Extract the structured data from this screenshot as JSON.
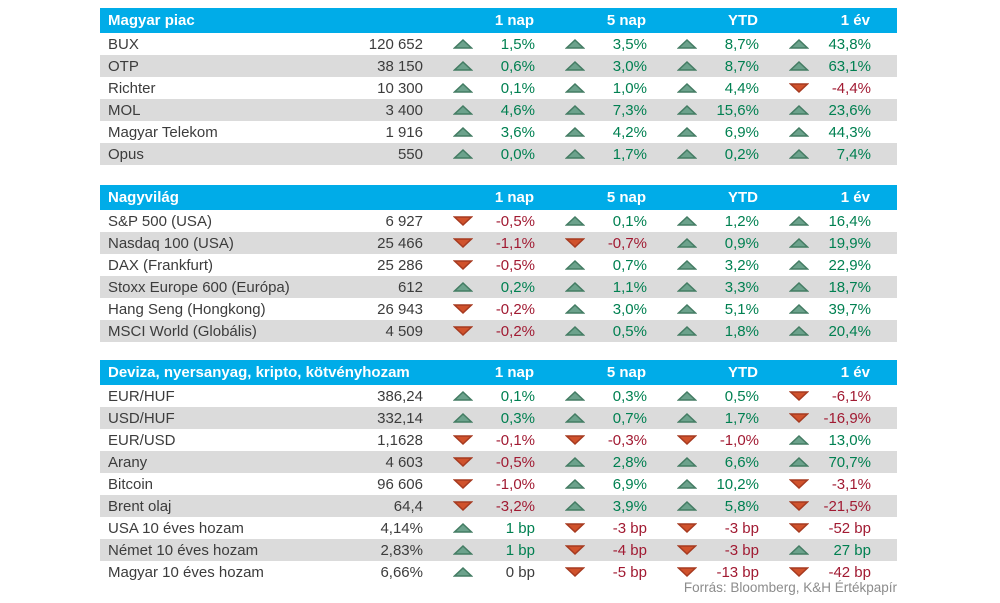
{
  "columns": [
    "1 nap",
    "5 nap",
    "YTD",
    "1 év"
  ],
  "footer": {
    "source": "Forrás: Bloomberg, K&H Értékpapír"
  },
  "colors": {
    "header_bg": "#00ACE8",
    "header_text": "#FFFFFF",
    "row_stripe": "#DBDBDB",
    "text_primary": "#3C3C3C",
    "positive_text": "#008051",
    "negative_text": "#A11A32",
    "up_triangle_fill": "#6CA28C",
    "up_triangle_border": "#437C63",
    "down_triangle_fill": "#D0522C",
    "down_triangle_border": "#A63A20",
    "source_text": "#8C8C8C"
  },
  "tables": [
    {
      "title": "Magyar piac",
      "rows": [
        {
          "name": "BUX",
          "value": "120 652",
          "changes": [
            {
              "dir": "up",
              "text": "1,5%",
              "tone": "pos"
            },
            {
              "dir": "up",
              "text": "3,5%",
              "tone": "pos"
            },
            {
              "dir": "up",
              "text": "8,7%",
              "tone": "pos"
            },
            {
              "dir": "up",
              "text": "43,8%",
              "tone": "pos"
            }
          ]
        },
        {
          "name": "OTP",
          "value": "38 150",
          "changes": [
            {
              "dir": "up",
              "text": "0,6%",
              "tone": "pos"
            },
            {
              "dir": "up",
              "text": "3,0%",
              "tone": "pos"
            },
            {
              "dir": "up",
              "text": "8,7%",
              "tone": "pos"
            },
            {
              "dir": "up",
              "text": "63,1%",
              "tone": "pos"
            }
          ]
        },
        {
          "name": "Richter",
          "value": "10 300",
          "changes": [
            {
              "dir": "up",
              "text": "0,1%",
              "tone": "pos"
            },
            {
              "dir": "up",
              "text": "1,0%",
              "tone": "pos"
            },
            {
              "dir": "up",
              "text": "4,4%",
              "tone": "pos"
            },
            {
              "dir": "down",
              "text": "-4,4%",
              "tone": "neg"
            }
          ]
        },
        {
          "name": "MOL",
          "value": "3 400",
          "changes": [
            {
              "dir": "up",
              "text": "4,6%",
              "tone": "pos"
            },
            {
              "dir": "up",
              "text": "7,3%",
              "tone": "pos"
            },
            {
              "dir": "up",
              "text": "15,6%",
              "tone": "pos"
            },
            {
              "dir": "up",
              "text": "23,6%",
              "tone": "pos"
            }
          ]
        },
        {
          "name": "Magyar Telekom",
          "value": "1 916",
          "changes": [
            {
              "dir": "up",
              "text": "3,6%",
              "tone": "pos"
            },
            {
              "dir": "up",
              "text": "4,2%",
              "tone": "pos"
            },
            {
              "dir": "up",
              "text": "6,9%",
              "tone": "pos"
            },
            {
              "dir": "up",
              "text": "44,3%",
              "tone": "pos"
            }
          ]
        },
        {
          "name": "Opus",
          "value": "550",
          "changes": [
            {
              "dir": "up",
              "text": "0,0%",
              "tone": "pos"
            },
            {
              "dir": "up",
              "text": "1,7%",
              "tone": "pos"
            },
            {
              "dir": "up",
              "text": "0,2%",
              "tone": "pos"
            },
            {
              "dir": "up",
              "text": "7,4%",
              "tone": "pos"
            }
          ]
        }
      ]
    },
    {
      "title": "Nagyvilág",
      "rows": [
        {
          "name": "S&P 500 (USA)",
          "value": "6 927",
          "changes": [
            {
              "dir": "down",
              "text": "-0,5%",
              "tone": "neg"
            },
            {
              "dir": "up",
              "text": "0,1%",
              "tone": "pos"
            },
            {
              "dir": "up",
              "text": "1,2%",
              "tone": "pos"
            },
            {
              "dir": "up",
              "text": "16,4%",
              "tone": "pos"
            }
          ]
        },
        {
          "name": "Nasdaq 100 (USA)",
          "value": "25 466",
          "changes": [
            {
              "dir": "down",
              "text": "-1,1%",
              "tone": "neg"
            },
            {
              "dir": "down",
              "text": "-0,7%",
              "tone": "neg"
            },
            {
              "dir": "up",
              "text": "0,9%",
              "tone": "pos"
            },
            {
              "dir": "up",
              "text": "19,9%",
              "tone": "pos"
            }
          ]
        },
        {
          "name": "DAX (Frankfurt)",
          "value": "25 286",
          "changes": [
            {
              "dir": "down",
              "text": "-0,5%",
              "tone": "neg"
            },
            {
              "dir": "up",
              "text": "0,7%",
              "tone": "pos"
            },
            {
              "dir": "up",
              "text": "3,2%",
              "tone": "pos"
            },
            {
              "dir": "up",
              "text": "22,9%",
              "tone": "pos"
            }
          ]
        },
        {
          "name": "Stoxx Europe 600 (Európa)",
          "value": "612",
          "changes": [
            {
              "dir": "up",
              "text": "0,2%",
              "tone": "pos"
            },
            {
              "dir": "up",
              "text": "1,1%",
              "tone": "pos"
            },
            {
              "dir": "up",
              "text": "3,3%",
              "tone": "pos"
            },
            {
              "dir": "up",
              "text": "18,7%",
              "tone": "pos"
            }
          ]
        },
        {
          "name": "Hang Seng (Hongkong)",
          "value": "26 943",
          "changes": [
            {
              "dir": "down",
              "text": "-0,2%",
              "tone": "neg"
            },
            {
              "dir": "up",
              "text": "3,0%",
              "tone": "pos"
            },
            {
              "dir": "up",
              "text": "5,1%",
              "tone": "pos"
            },
            {
              "dir": "up",
              "text": "39,7%",
              "tone": "pos"
            }
          ]
        },
        {
          "name": "MSCI World (Globális)",
          "value": "4 509",
          "changes": [
            {
              "dir": "down",
              "text": "-0,2%",
              "tone": "neg"
            },
            {
              "dir": "up",
              "text": "0,5%",
              "tone": "pos"
            },
            {
              "dir": "up",
              "text": "1,8%",
              "tone": "pos"
            },
            {
              "dir": "up",
              "text": "20,4%",
              "tone": "pos"
            }
          ]
        }
      ]
    },
    {
      "title": "Deviza, nyersanyag, kripto, kötvényhozam",
      "rows": [
        {
          "name": "EUR/HUF",
          "value": "386,24",
          "changes": [
            {
              "dir": "up",
              "text": "0,1%",
              "tone": "pos"
            },
            {
              "dir": "up",
              "text": "0,3%",
              "tone": "pos"
            },
            {
              "dir": "up",
              "text": "0,5%",
              "tone": "pos"
            },
            {
              "dir": "down",
              "text": "-6,1%",
              "tone": "neg"
            }
          ]
        },
        {
          "name": "USD/HUF",
          "value": "332,14",
          "changes": [
            {
              "dir": "up",
              "text": "0,3%",
              "tone": "pos"
            },
            {
              "dir": "up",
              "text": "0,7%",
              "tone": "pos"
            },
            {
              "dir": "up",
              "text": "1,7%",
              "tone": "pos"
            },
            {
              "dir": "down",
              "text": "-16,9%",
              "tone": "neg"
            }
          ]
        },
        {
          "name": "EUR/USD",
          "value": "1,1628",
          "changes": [
            {
              "dir": "down",
              "text": "-0,1%",
              "tone": "neg"
            },
            {
              "dir": "down",
              "text": "-0,3%",
              "tone": "neg"
            },
            {
              "dir": "down",
              "text": "-1,0%",
              "tone": "neg"
            },
            {
              "dir": "up",
              "text": "13,0%",
              "tone": "pos"
            }
          ]
        },
        {
          "name": "Arany",
          "value": "4 603",
          "changes": [
            {
              "dir": "down",
              "text": "-0,5%",
              "tone": "neg"
            },
            {
              "dir": "up",
              "text": "2,8%",
              "tone": "pos"
            },
            {
              "dir": "up",
              "text": "6,6%",
              "tone": "pos"
            },
            {
              "dir": "up",
              "text": "70,7%",
              "tone": "pos"
            }
          ]
        },
        {
          "name": "Bitcoin",
          "value": "96 606",
          "changes": [
            {
              "dir": "down",
              "text": "-1,0%",
              "tone": "neg"
            },
            {
              "dir": "up",
              "text": "6,9%",
              "tone": "pos"
            },
            {
              "dir": "up",
              "text": "10,2%",
              "tone": "pos"
            },
            {
              "dir": "down",
              "text": "-3,1%",
              "tone": "neg"
            }
          ]
        },
        {
          "name": "Brent olaj",
          "value": "64,4",
          "changes": [
            {
              "dir": "down",
              "text": "-3,2%",
              "tone": "neg"
            },
            {
              "dir": "up",
              "text": "3,9%",
              "tone": "pos"
            },
            {
              "dir": "up",
              "text": "5,8%",
              "tone": "pos"
            },
            {
              "dir": "down",
              "text": "-21,5%",
              "tone": "neg"
            }
          ]
        },
        {
          "name": "USA 10 éves hozam",
          "value": "4,14%",
          "changes": [
            {
              "dir": "up",
              "text": "1 bp",
              "tone": "pos"
            },
            {
              "dir": "down",
              "text": "-3 bp",
              "tone": "neg"
            },
            {
              "dir": "down",
              "text": "-3 bp",
              "tone": "neg"
            },
            {
              "dir": "down",
              "text": "-52 bp",
              "tone": "neg"
            }
          ]
        },
        {
          "name": "Német 10 éves hozam",
          "value": "2,83%",
          "changes": [
            {
              "dir": "up",
              "text": "1 bp",
              "tone": "pos"
            },
            {
              "dir": "down",
              "text": "-4 bp",
              "tone": "neg"
            },
            {
              "dir": "down",
              "text": "-3 bp",
              "tone": "neg"
            },
            {
              "dir": "up",
              "text": "27 bp",
              "tone": "pos"
            }
          ]
        },
        {
          "name": "Magyar 10 éves hozam",
          "value": "6,66%",
          "changes": [
            {
              "dir": "up",
              "text": "0 bp",
              "tone": "neutral"
            },
            {
              "dir": "down",
              "text": "-5 bp",
              "tone": "neg"
            },
            {
              "dir": "down",
              "text": "-13 bp",
              "tone": "neg"
            },
            {
              "dir": "down",
              "text": "-42 bp",
              "tone": "neg"
            }
          ]
        }
      ]
    }
  ]
}
